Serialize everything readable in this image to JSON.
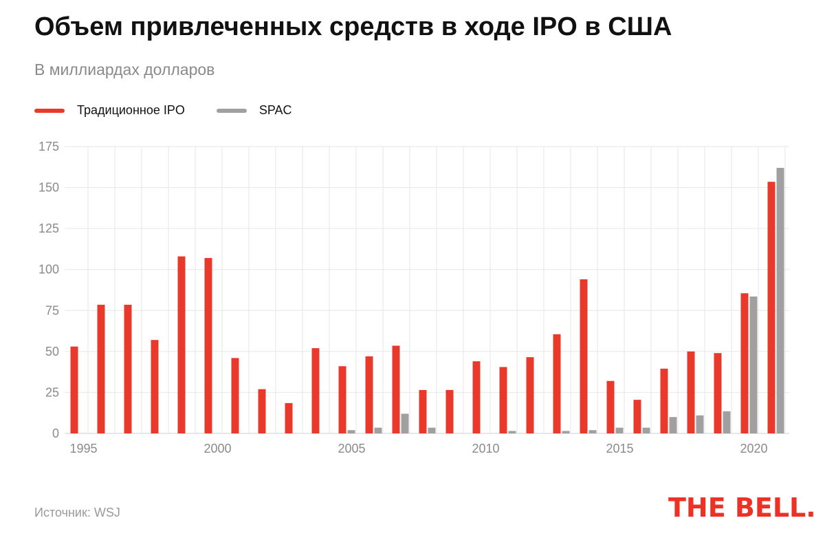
{
  "title": "Объем привлеченных средств в ходе IPO в США",
  "subtitle": "В миллиардах долларов",
  "source": "Источник: WSJ",
  "logo": "THE BELL.",
  "colors": {
    "ipo": "#e8392b",
    "spac": "#a0a0a0",
    "grid": "#e6e6e6",
    "axis": "#8a8a8a"
  },
  "chart_data": {
    "type": "bar",
    "legend_position": "top-left",
    "grid": true,
    "ylim": [
      0,
      175
    ],
    "yticks": [
      0,
      25,
      50,
      75,
      100,
      125,
      150,
      175
    ],
    "xtick_labels": [
      "1995",
      "2000",
      "2005",
      "2010",
      "2015",
      "2020"
    ],
    "categories": [
      1995,
      1996,
      1997,
      1998,
      1999,
      2000,
      2001,
      2002,
      2003,
      2004,
      2005,
      2006,
      2007,
      2008,
      2009,
      2010,
      2011,
      2012,
      2013,
      2014,
      2015,
      2016,
      2017,
      2018,
      2019,
      2020,
      2021
    ],
    "series": [
      {
        "name": "Традиционное IPO",
        "color": "#e8392b",
        "values": [
          53,
          78.5,
          78.5,
          57,
          108,
          107,
          46,
          27,
          18.5,
          52,
          41,
          47,
          53.5,
          26.5,
          26.5,
          44,
          40.5,
          46.5,
          60.5,
          94,
          32,
          20.5,
          39.5,
          50,
          49,
          85.5,
          153.5
        ]
      },
      {
        "name": "SPAC",
        "color": "#a0a0a0",
        "values": [
          0,
          0,
          0,
          0,
          0,
          0,
          0,
          0,
          0,
          0,
          2,
          3.5,
          12,
          3.5,
          0,
          0,
          1.5,
          0,
          1.5,
          2,
          3.5,
          3.5,
          10,
          11,
          13.5,
          83.5,
          162
        ]
      }
    ]
  }
}
